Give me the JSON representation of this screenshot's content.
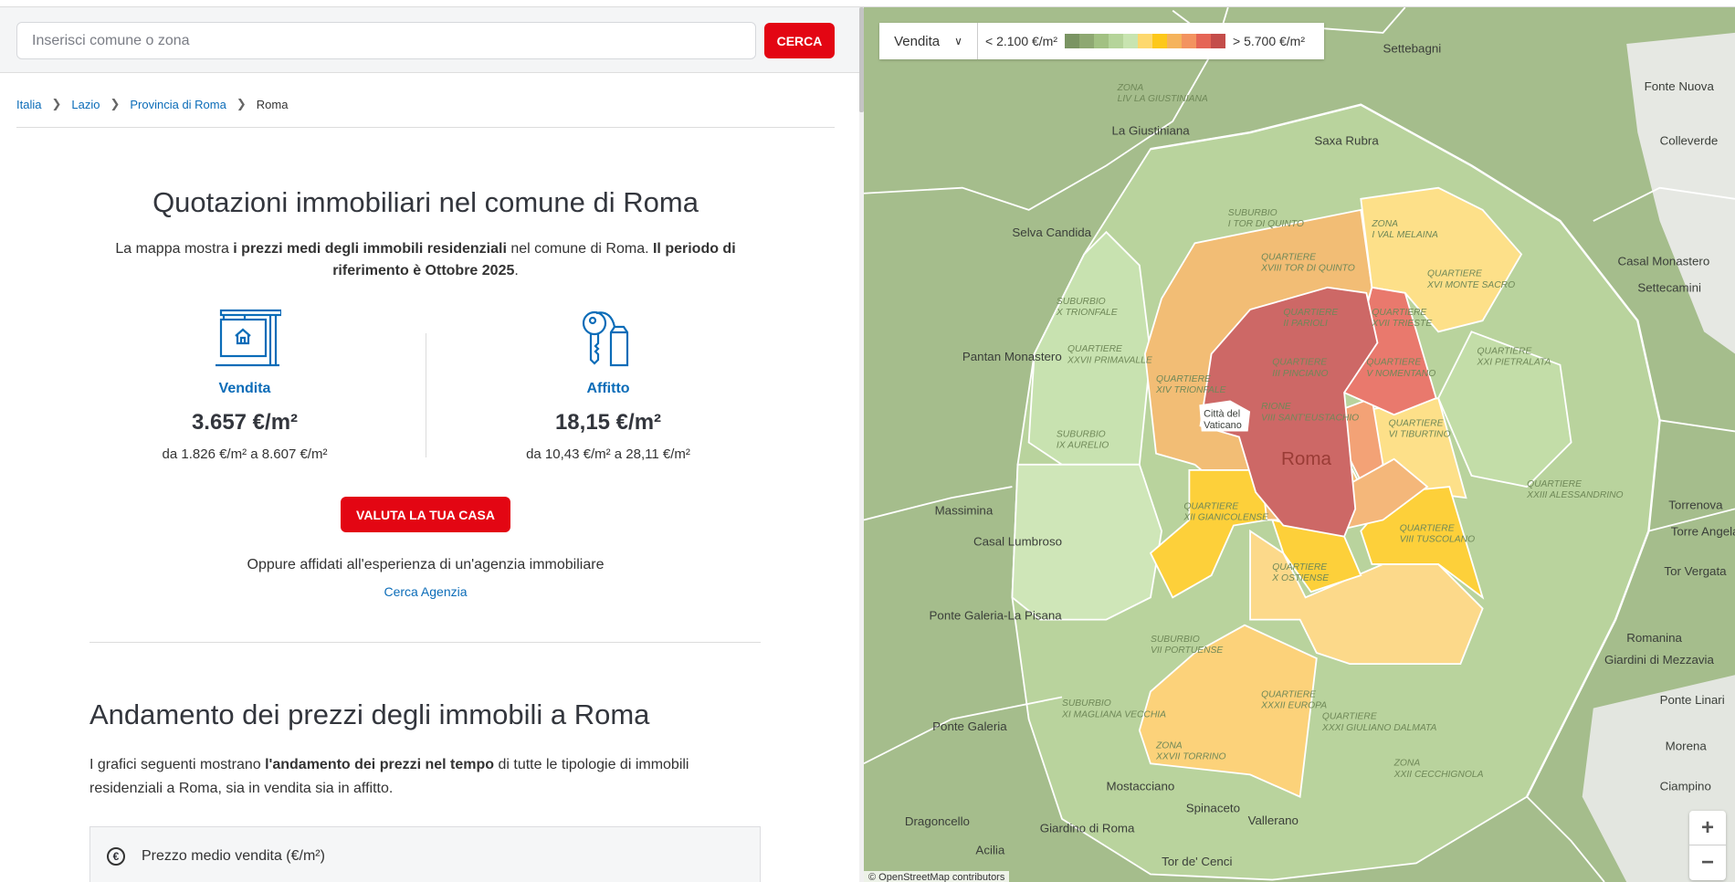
{
  "search": {
    "placeholder": "Inserisci comune o zona",
    "button": "CERCA"
  },
  "breadcrumb": [
    {
      "label": "Italia"
    },
    {
      "label": "Lazio"
    },
    {
      "label": "Provincia di Roma"
    },
    {
      "label": "Roma"
    }
  ],
  "header": {
    "title": "Quotazioni immobiliari nel comune di Roma",
    "intro": {
      "a": "La mappa mostra ",
      "b": "i prezzi medi degli immobili residenziali",
      "c": " nel comune di Roma. ",
      "d": "Il periodo di riferimento è Ottobre 2025",
      "e": "."
    }
  },
  "stats": [
    {
      "icon": "for-sale-sign-icon",
      "label": "Vendita",
      "value": "3.657 €/m²",
      "range": "da 1.826 €/m² a 8.607 €/m²"
    },
    {
      "icon": "keys-icon",
      "label": "Affitto",
      "value": "18,15 €/m²",
      "range": "da 10,43 €/m² a 28,11 €/m²"
    }
  ],
  "cta": {
    "valuta": "VALUTA LA TUA CASA",
    "oppure": "Oppure affidati all'esperienza di un'agenzia immobiliare",
    "cerca_agenzia": "Cerca Agenzia"
  },
  "trend": {
    "title": "Andamento dei prezzi degli immobili a Roma",
    "text": {
      "a": "I grafici seguenti mostrano ",
      "b": "l'andamento dei prezzi nel tempo",
      "c": " di tutte le tipologie di immobili residenziali a Roma, sia in vendita sia in affitto."
    },
    "accordion": {
      "icon": "euro-icon",
      "label": "Prezzo medio vendita (€/m²)"
    }
  },
  "map": {
    "mode": "Vendita",
    "legend_low": "< 2.100 €/m²",
    "legend_high": "> 5.700 €/m²",
    "legend_colors": [
      "#7a9463",
      "#8ea872",
      "#a2c183",
      "#b5d49a",
      "#c8e4b0",
      "#fdd86e",
      "#fdc81a",
      "#f5b35c",
      "#f39360",
      "#e56556",
      "#c44d4a"
    ],
    "city_label": "Roma",
    "vatican_label": "Città del Vaticano",
    "towns": [
      "Settebagni",
      "Fonte Nuova",
      "Colleverde",
      "La Giustiniana",
      "Saxa Rubra",
      "Selva Candida",
      "Casal Monastero",
      "Settecamini",
      "Pantan Monastero",
      "Massimina",
      "Casal Lumbroso",
      "Torrenova",
      "Torre Angela",
      "Tor Vergata",
      "Ponte Galeria-La Pisana",
      "Romanina",
      "Giardini di Mezzavia",
      "Ponte Linari",
      "Ponte Galeria",
      "Morena",
      "Ciampino",
      "Dragoncello",
      "Vallerano",
      "Acilia",
      "Spinaceto",
      "Tor de' Cenci",
      "Giardino di Roma",
      "Mostacciano"
    ],
    "zones": [
      "ZONA LIV LA GIUSTINIANA",
      "SUBURBIO I TOR DI QUINTO",
      "QUARTIERE XVIII TOR DI QUINTO",
      "ZONA I VAL MELAINA",
      "QUARTIERE XVI MONTE SACRO",
      "QUARTIERE II PARIOLI",
      "QUARTIERE III PINCIANO",
      "QUARTIERE XVII TRIESTE",
      "QUARTIERE V NOMENTANO",
      "QUARTIERE XIV TRIONFALE",
      "QUARTIERE XXVII PRIMAVALLE",
      "SUBURBIO X TRIONFALE",
      "SUBURBIO IX AURELIO",
      "RIONE VIII SANT'EUSTACHIO",
      "QUARTIERE VI TIBURTINO",
      "QUARTIERE XXI PIETRALATA",
      "QUARTIERE XII GIANICOLENSE",
      "QUARTIERE VIII TUSCOLANO",
      "QUARTIERE X OSTIENSE",
      "QUARTIERE XXXII EUROPA",
      "ZONA XXVII TORRINO",
      "QUARTIERE XXXI GIULIANO DALMATA",
      "ZONA XXII CECCHIGNOLA",
      "SUBURBIO VII PORTUENSE",
      "SUBURBIO XI MAGLIANA VECCHIA",
      "QUARTIERE XXIII ALESSANDRINO"
    ],
    "attribution": "© OpenStreetMap contributors",
    "zoom_in": "+",
    "zoom_out": "−"
  }
}
